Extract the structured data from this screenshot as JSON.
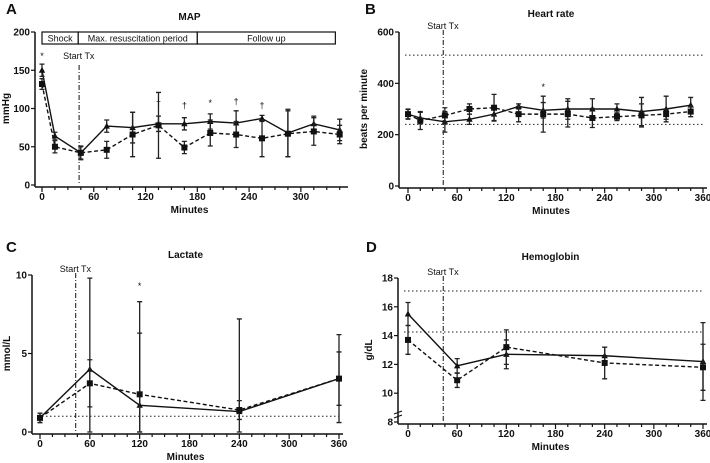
{
  "chart_data": [
    {
      "panel": "A",
      "type": "line",
      "title": "MAP",
      "xlabel": "Minutes",
      "ylabel": "mmHg",
      "xlim": [
        0,
        350
      ],
      "ylim": [
        0,
        200
      ],
      "xticks": [
        0,
        60,
        120,
        180,
        240,
        300
      ],
      "yticks": [
        0,
        50,
        100,
        150,
        200
      ],
      "x": [
        0,
        15,
        45,
        75,
        105,
        135,
        165,
        195,
        225,
        255,
        285,
        315,
        345
      ],
      "series": [
        {
          "style": "solid",
          "marker": "triangle",
          "values": [
            150,
            64,
            42,
            77,
            75,
            80,
            80,
            83,
            81,
            87,
            68,
            80,
            72
          ],
          "error": [
            8,
            5,
            8,
            8,
            20,
            10,
            8,
            10,
            16,
            4,
            31,
            10,
            14
          ]
        },
        {
          "style": "dashed",
          "marker": "square",
          "values": [
            132,
            50,
            42,
            46,
            66,
            78,
            49,
            68,
            66,
            61,
            67,
            70,
            66
          ],
          "error": [
            7,
            8,
            9,
            11,
            29,
            43,
            8,
            17,
            17,
            24,
            30,
            18,
            12
          ]
        }
      ],
      "start_tx": {
        "label": "Start Tx",
        "x": 43
      },
      "phases": [
        {
          "label": "Shock",
          "from": 0,
          "to": 42
        },
        {
          "label": "Max. resuscitation period",
          "from": 42,
          "to": 180
        },
        {
          "label": "Follow up",
          "from": 180,
          "to": 340
        }
      ],
      "annotations": [
        {
          "text": "*",
          "x": 0,
          "y": 165
        },
        {
          "text": "†",
          "x": 135,
          "y": 103
        },
        {
          "text": "†",
          "x": 165,
          "y": 100
        },
        {
          "text": "*",
          "x": 195,
          "y": 103
        },
        {
          "text": "†",
          "x": 225,
          "y": 105
        },
        {
          "text": "†",
          "x": 255,
          "y": 100
        }
      ],
      "reference_lines": []
    },
    {
      "panel": "B",
      "type": "line",
      "title": "Heart rate",
      "xlabel": "Minutes",
      "ylabel": "beats per minute",
      "xlim": [
        0,
        360
      ],
      "ylim": [
        0,
        600
      ],
      "xticks": [
        0,
        60,
        120,
        180,
        240,
        300,
        360
      ],
      "yticks": [
        0,
        200,
        400,
        600
      ],
      "x": [
        0,
        15,
        45,
        75,
        105,
        135,
        165,
        195,
        225,
        255,
        285,
        315,
        345
      ],
      "series": [
        {
          "style": "solid",
          "marker": "triangle",
          "values": [
            280,
            265,
            250,
            260,
            280,
            310,
            295,
            300,
            300,
            300,
            290,
            300,
            315
          ],
          "error": [
            18,
            22,
            40,
            20,
            25,
            10,
            30,
            40,
            40,
            20,
            55,
            50,
            30
          ]
        },
        {
          "style": "dashed",
          "marker": "square",
          "values": [
            280,
            255,
            275,
            300,
            305,
            280,
            280,
            280,
            265,
            270,
            275,
            280,
            290
          ],
          "error": [
            20,
            35,
            30,
            20,
            52,
            30,
            70,
            50,
            37,
            15,
            45,
            20,
            20
          ]
        }
      ],
      "start_tx": {
        "label": "Start Tx",
        "x": 43
      },
      "annotations": [
        {
          "text": "*",
          "x": 165,
          "y": 375
        }
      ],
      "reference_lines": [
        510,
        240
      ]
    },
    {
      "panel": "C",
      "type": "line",
      "title": "Lactate",
      "xlabel": "Minutes",
      "ylabel": "mmol/L",
      "xlim": [
        0,
        360
      ],
      "ylim": [
        0,
        10
      ],
      "xticks": [
        0,
        60,
        120,
        180,
        240,
        300,
        360
      ],
      "yticks": [
        0,
        5,
        10
      ],
      "x": [
        0,
        60,
        120,
        240,
        360
      ],
      "series": [
        {
          "style": "solid",
          "marker": "triangle",
          "values": [
            0.9,
            4.0,
            1.7,
            1.3,
            3.4
          ],
          "error": [
            0.3,
            5.8,
            6.6,
            5.9,
            2.8
          ]
        },
        {
          "style": "dashed",
          "marker": "square",
          "values": [
            0.9,
            3.1,
            2.4,
            1.4,
            3.4
          ],
          "error": [
            0.3,
            1.5,
            3.9,
            0.6,
            1.7
          ]
        }
      ],
      "start_tx": {
        "label": "Start Tx",
        "x": 43
      },
      "annotations": [
        {
          "text": "*",
          "x": 120,
          "y": 9.1
        }
      ],
      "reference_lines": [
        1.0
      ]
    },
    {
      "panel": "D",
      "type": "line",
      "title": "Hemoglobin",
      "xlabel": "Minutes",
      "ylabel": "g/dL",
      "xlim": [
        0,
        360
      ],
      "ylim": [
        8,
        18
      ],
      "axis_break": true,
      "xticks": [
        0,
        60,
        120,
        180,
        240,
        300,
        360
      ],
      "yticks": [
        8,
        10,
        12,
        14,
        16,
        18
      ],
      "x": [
        0,
        60,
        120,
        240,
        360
      ],
      "series": [
        {
          "style": "solid",
          "marker": "triangle",
          "values": [
            15.5,
            11.9,
            12.7,
            12.6,
            12.2
          ],
          "error": [
            0.8,
            0.5,
            1.0,
            0.6,
            2.7
          ]
        },
        {
          "style": "dashed",
          "marker": "square",
          "values": [
            13.7,
            10.9,
            13.2,
            12.1,
            11.8
          ],
          "error": [
            1.0,
            0.5,
            1.2,
            1.1,
            1.6
          ]
        }
      ],
      "start_tx": {
        "label": "Start Tx",
        "x": 43
      },
      "annotations": [],
      "reference_lines": [
        17.1,
        14.25
      ]
    }
  ]
}
